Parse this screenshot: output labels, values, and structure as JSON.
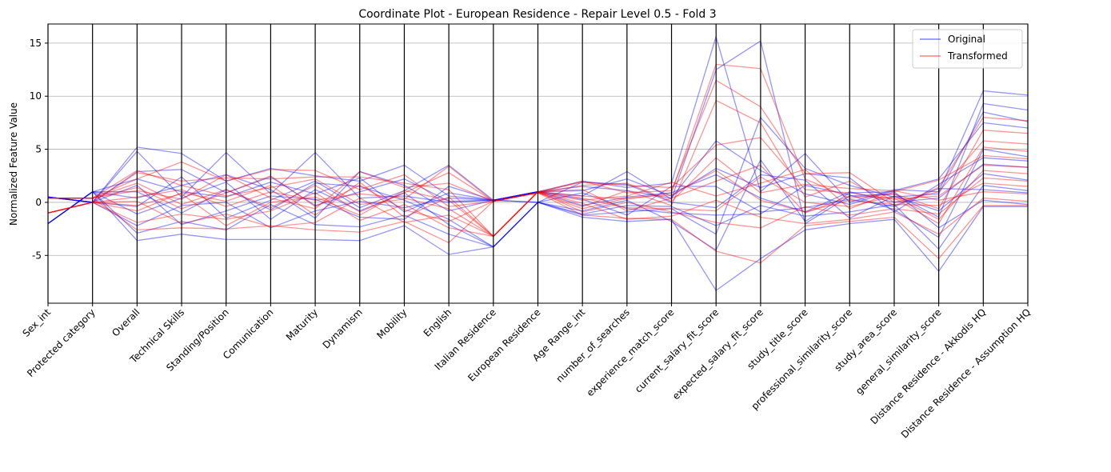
{
  "chart_data": {
    "type": "line",
    "title": "Coordinate Plot - European Residence - Repair Level 0.5 - Fold 3",
    "xlabel": "",
    "ylabel": "Normalized Feature Value",
    "ylim": [
      -9.5,
      16.8
    ],
    "yticks": [
      -5,
      0,
      5,
      10,
      15
    ],
    "grid": "horizontal",
    "legend_position": "top-right",
    "categories": [
      "Sex_int",
      "Protected category",
      "Overall",
      "Technical Skills",
      "Standing/Position",
      "Comunication",
      "Maturity",
      "Dynamism",
      "Mobility",
      "English",
      "Italian Residence",
      "European Residence",
      "Age Range_int",
      "number_of_searches",
      "experience_match_score",
      "current_salary_fit_score",
      "expected_salary_fit_score",
      "study_title_score",
      "professional_similarity_score",
      "study_area_score",
      "general_similarity_score",
      "Distance Residence - Akkodis HQ",
      "Distance Residence - Assumption HQ"
    ],
    "series": [
      {
        "name": "Original",
        "color": "#0000ff",
        "lines": [
          [
            -2.0,
            1.0,
            -3.6,
            -3.0,
            -3.5,
            -3.5,
            -3.5,
            -3.6,
            -2.2,
            -4.9,
            -4.2,
            0.0,
            -1.4,
            -1.8,
            -1.6,
            -8.3,
            -5.3,
            -2.6,
            -2.0,
            -1.6,
            -6.5,
            -0.4,
            -0.4
          ],
          [
            0.5,
            0.0,
            5.2,
            4.6,
            2.0,
            3.2,
            2.5,
            2.0,
            3.5,
            0.6,
            0.2,
            1.0,
            2.0,
            1.4,
            1.8,
            15.6,
            1.0,
            4.6,
            0.0,
            1.2,
            1.0,
            10.5,
            10.1
          ],
          [
            0.5,
            0.0,
            4.8,
            0.5,
            4.7,
            0.8,
            4.7,
            0.4,
            0.6,
            0.0,
            0.2,
            1.0,
            0.6,
            2.9,
            0.3,
            12.5,
            15.2,
            -2.0,
            0.6,
            0.8,
            -1.4,
            9.3,
            8.7
          ],
          [
            -2.0,
            1.0,
            2.2,
            1.0,
            0.5,
            1.9,
            0.8,
            2.3,
            -0.9,
            0.9,
            0.2,
            0.0,
            -1.2,
            -0.9,
            -0.6,
            -3.0,
            8.0,
            3.2,
            1.6,
            0.5,
            0.8,
            8.5,
            7.6
          ],
          [
            0.5,
            0.0,
            -0.4,
            2.4,
            -1.5,
            0.2,
            2.0,
            -0.5,
            1.1,
            3.5,
            0.2,
            1.0,
            1.5,
            1.1,
            0.4,
            5.8,
            3.0,
            0.8,
            -0.2,
            1.1,
            2.2,
            7.5,
            7.0
          ],
          [
            -2.0,
            1.0,
            1.0,
            -1.0,
            1.2,
            -0.7,
            1.8,
            1.5,
            0.2,
            -1.6,
            -4.2,
            0.0,
            0.9,
            -0.6,
            -1.0,
            -1.2,
            -1.1,
            1.6,
            0.7,
            -0.7,
            -3.3,
            5.0,
            4.3
          ],
          [
            0.5,
            0.0,
            -2.2,
            -0.3,
            0.0,
            -2.4,
            -0.8,
            0.1,
            -0.5,
            0.4,
            0.2,
            1.0,
            -0.3,
            0.5,
            0.9,
            2.6,
            0.4,
            -0.9,
            1.0,
            0.0,
            0.4,
            3.6,
            3.3
          ],
          [
            -2.0,
            1.0,
            0.4,
            1.6,
            2.6,
            1.2,
            -1.5,
            2.9,
            1.6,
            -0.8,
            0.2,
            0.0,
            1.9,
            1.7,
            0.0,
            -0.5,
            2.6,
            2.1,
            -1.5,
            0.6,
            -0.8,
            2.7,
            2.1
          ],
          [
            0.5,
            0.0,
            1.6,
            -2.1,
            -0.8,
            0.6,
            0.3,
            -1.4,
            -1.6,
            1.5,
            0.2,
            1.0,
            0.3,
            -1.2,
            1.5,
            1.5,
            -0.9,
            -0.5,
            0.3,
            -0.4,
            1.3,
            1.2,
            0.9
          ],
          [
            -2.0,
            1.0,
            -1.1,
            0.4,
            1.9,
            -1.6,
            1.2,
            -0.8,
            0.9,
            -2.1,
            -4.2,
            0.0,
            -0.8,
            0.2,
            -1.8,
            -4.5,
            4.0,
            -1.8,
            0.9,
            1.0,
            -2.4,
            0.2,
            -0.2
          ],
          [
            0.5,
            0.0,
            2.9,
            3.1,
            0.9,
            2.4,
            -0.3,
            1.0,
            2.2,
            0.1,
            0.2,
            1.0,
            1.1,
            2.2,
            0.6,
            3.2,
            1.4,
            2.7,
            2.3,
            -0.9,
            1.7,
            4.2,
            3.9
          ],
          [
            -2.0,
            1.0,
            -2.9,
            -1.8,
            -2.6,
            -0.2,
            -2.1,
            -2.3,
            -1.2,
            -3.0,
            -4.2,
            0.0,
            -1.1,
            -0.3,
            -0.4,
            -2.2,
            -0.3,
            -1.3,
            -0.9,
            -0.2,
            -4.4,
            1.6,
            1.1
          ]
        ]
      },
      {
        "name": "Transformed",
        "color": "#ff0000",
        "lines": [
          [
            -1.0,
            0.0,
            2.8,
            2.0,
            2.3,
            2.2,
            2.4,
            2.4,
            1.8,
            1.2,
            -3.2,
            1.0,
            1.9,
            1.6,
            1.4,
            5.4,
            6.1,
            1.2,
            0.9,
            0.3,
            0.6,
            3.5,
            3.3
          ],
          [
            0.4,
            0.4,
            -2.6,
            -2.4,
            -2.5,
            -2.2,
            -2.6,
            -2.8,
            -1.8,
            -3.8,
            0.1,
            0.9,
            -1.2,
            -1.5,
            -1.6,
            -4.6,
            -5.7,
            -2.2,
            -1.8,
            -1.4,
            -5.3,
            -0.3,
            -0.3
          ],
          [
            -1.0,
            0.0,
            0.5,
            1.2,
            -0.4,
            1.0,
            0.2,
            0.8,
            0.4,
            -0.6,
            -3.2,
            1.0,
            0.6,
            0.3,
            0.9,
            13.0,
            12.6,
            2.2,
            0.4,
            0.8,
            -0.6,
            6.8,
            6.5
          ],
          [
            0.4,
            0.4,
            1.8,
            -0.2,
            1.2,
            -0.5,
            1.6,
            -0.9,
            0.9,
            2.8,
            0.1,
            0.9,
            -0.4,
            1.1,
            -0.3,
            9.6,
            7.5,
            0.5,
            2.0,
            -0.3,
            1.4,
            8.0,
            7.7
          ],
          [
            -1.0,
            0.0,
            -0.8,
            0.9,
            0.1,
            1.6,
            -1.2,
            1.9,
            -1.4,
            0.5,
            -3.2,
            1.0,
            1.2,
            -0.8,
            0.4,
            2.0,
            3.5,
            -1.0,
            0.6,
            0.4,
            -2.0,
            5.2,
            4.8
          ],
          [
            0.4,
            0.4,
            2.2,
            3.8,
            2.0,
            3.1,
            3.0,
            1.2,
            2.6,
            -0.4,
            0.1,
            0.9,
            0.2,
            0.6,
            1.9,
            0.6,
            1.8,
            3.1,
            -0.6,
            1.0,
            2.1,
            4.4,
            4.1
          ],
          [
            -1.0,
            0.0,
            -1.9,
            -1.1,
            -1.6,
            -0.8,
            0.9,
            -1.7,
            -0.2,
            -2.4,
            -3.2,
            1.0,
            -0.9,
            0.0,
            -0.9,
            -1.9,
            -2.4,
            -0.4,
            -1.2,
            -0.6,
            -1.1,
            2.3,
            2.0
          ],
          [
            0.4,
            0.4,
            1.1,
            0.3,
            2.6,
            0.4,
            -0.6,
            2.9,
            1.4,
            1.8,
            0.1,
            0.9,
            1.6,
            1.8,
            0.1,
            4.2,
            0.9,
            1.7,
            1.3,
            1.1,
            0.2,
            1.0,
            0.8
          ],
          [
            -1.0,
            0.0,
            0.1,
            -2.0,
            -1.1,
            -2.3,
            -1.9,
            0.4,
            -1.9,
            -1.2,
            -3.2,
            1.0,
            -0.1,
            -1.6,
            -1.3,
            0.2,
            -1.4,
            -2.0,
            -1.6,
            -0.9,
            -3.0,
            0.4,
            0.1
          ],
          [
            0.4,
            0.4,
            3.0,
            1.6,
            0.6,
            1.4,
            2.2,
            -0.2,
            0.3,
            3.4,
            0.1,
            0.9,
            2.0,
            0.9,
            1.1,
            11.5,
            9.0,
            2.7,
            2.8,
            0.0,
            1.0,
            5.8,
            5.5
          ],
          [
            -1.0,
            0.0,
            -0.3,
            0.8,
            -2.2,
            0.0,
            0.5,
            -1.2,
            1.1,
            0.2,
            -3.2,
            1.0,
            0.4,
            -0.5,
            -0.6,
            -0.8,
            2.4,
            0.0,
            -0.4,
            0.6,
            -1.6,
            3.0,
            2.7
          ],
          [
            0.4,
            0.4,
            1.4,
            -0.6,
            0.9,
            2.5,
            -0.4,
            1.6,
            -0.7,
            -1.8,
            0.1,
            0.9,
            -0.6,
            0.4,
            0.7,
            3.0,
            0.2,
            -0.9,
            0.2,
            -0.2,
            -0.3,
            1.8,
            1.5
          ]
        ]
      }
    ]
  }
}
